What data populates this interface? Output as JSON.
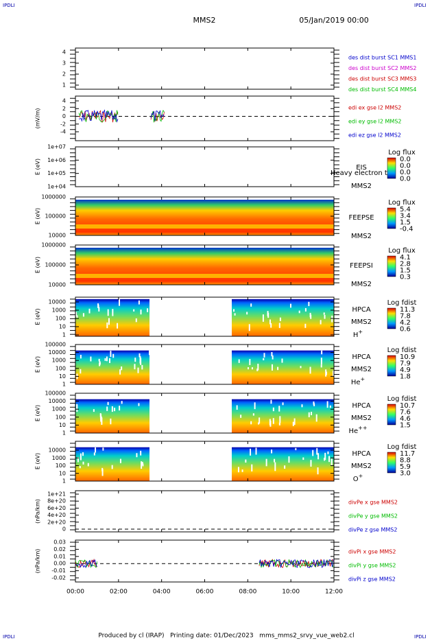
{
  "header": {
    "corner_left": "IPDLI",
    "corner_right": "IPDLI",
    "title": "MMS2",
    "date": "05/Jan/2019 00:00"
  },
  "panels": [
    {
      "kind": "lines",
      "yticks": [
        "4",
        "3",
        "2",
        "1"
      ],
      "legend": [
        {
          "text": "des dist burst SC1 MMS1",
          "color": "#0000cc"
        },
        {
          "text": "des dist burst SC2 MMS2",
          "color": "#cc00cc"
        },
        {
          "text": "des dist burst SC3 MMS3",
          "color": "#cc0000"
        },
        {
          "text": "des dist burst SC4 MMS4",
          "color": "#00bb00"
        }
      ]
    },
    {
      "kind": "lines",
      "ylabel": "(mV/m)",
      "yticks": [
        "4",
        "2",
        "0",
        "-2",
        "-4"
      ],
      "zero": true,
      "legend": [
        {
          "text": "edi ex gse l2 MMS2",
          "color": "#cc0000"
        },
        {
          "text": "edi ey gse l2 MMS2",
          "color": "#00bb00"
        },
        {
          "text": "edi ez gse l2 MMS2",
          "color": "#0000cc"
        }
      ]
    },
    {
      "kind": "spectro",
      "fill": "none",
      "ylabel": "E (eV)",
      "yticks": [
        "1e+07",
        "1e+06",
        "1e+05",
        "1e+04"
      ],
      "instrument": "EIS",
      "overlay": "Heavy electron to",
      "sc": "MMS2",
      "cbar_title": "Log flux",
      "cbar": [
        "0.0",
        "0.0",
        "0.0",
        "0.0"
      ]
    },
    {
      "kind": "spectro",
      "fill": "full",
      "ylabel": "E (eV)",
      "yticks": [
        "1000000",
        "100000",
        "10000"
      ],
      "instrument": "FEEPSE",
      "sc": "MMS2",
      "cbar_title": "Log flux",
      "cbar": [
        "5.4",
        "3.4",
        "1.5",
        "-0.4"
      ]
    },
    {
      "kind": "spectro",
      "fill": "full",
      "ylabel": "E (eV)",
      "yticks": [
        "1000000",
        "100000",
        "10000"
      ],
      "instrument": "FEEPSI",
      "sc": "MMS2",
      "cbar_title": "Log flux",
      "cbar": [
        "4.1",
        "2.8",
        "1.5",
        "0.3"
      ]
    },
    {
      "kind": "spectro",
      "fill": "gap",
      "ylabel": "E (eV)",
      "yticks": [
        "10000",
        "1000",
        "100",
        "10",
        "1"
      ],
      "instrument": "HPCA",
      "sc": "MMS2",
      "species": {
        "base": "H",
        "sup": "+"
      },
      "cbar_title": "Log fdist",
      "cbar": [
        "11.3",
        "7.8",
        "4.2",
        "0.6"
      ]
    },
    {
      "kind": "spectro",
      "fill": "gap",
      "ylabel": "E (eV)",
      "yticks": [
        "100000",
        "10000",
        "1000",
        "100",
        "10",
        "1"
      ],
      "instrument": "HPCA",
      "sc": "MMS2",
      "species": {
        "base": "He",
        "sup": "+"
      },
      "cbar_title": "Log fdist",
      "cbar": [
        "10.9",
        "7.9",
        "4.9",
        "1.8"
      ]
    },
    {
      "kind": "spectro",
      "fill": "gap",
      "ylabel": "E (eV)",
      "yticks": [
        "100000",
        "10000",
        "1000",
        "100",
        "10",
        "1"
      ],
      "instrument": "HPCA",
      "sc": "MMS2",
      "species": {
        "base": "He",
        "sup": "++"
      },
      "cbar_title": "Log fdist",
      "cbar": [
        "10.7",
        "7.6",
        "4.6",
        "1.5"
      ]
    },
    {
      "kind": "spectro",
      "fill": "gap",
      "ylabel": "E (eV)",
      "yticks": [
        "10000",
        "1000",
        "100",
        "10",
        "1"
      ],
      "instrument": "HPCA",
      "sc": "MMS2",
      "species": {
        "base": "O",
        "sup": "+"
      },
      "cbar_title": "Log fdist",
      "cbar": [
        "11.7",
        "8.8",
        "5.9",
        "3.0"
      ]
    },
    {
      "kind": "lines",
      "ylabel": "(nPa/km)",
      "yticks": [
        "1e+21",
        "8e+20",
        "6e+20",
        "4e+20",
        "2e+20",
        "0"
      ],
      "zero": true,
      "legend": [
        {
          "text": "divPe x gse MMS2",
          "color": "#cc0000"
        },
        {
          "text": "divPe y gse MMS2",
          "color": "#00bb00"
        },
        {
          "text": "divPe z gse MMS2",
          "color": "#0000cc"
        }
      ]
    },
    {
      "kind": "lines",
      "ylabel": "(nPa/km)",
      "yticks": [
        "0.03",
        "0.02",
        "0.01",
        "0.00",
        "-0.01",
        "-0.02"
      ],
      "zero": true,
      "legend": [
        {
          "text": "divPi x gse MMS2",
          "color": "#cc0000"
        },
        {
          "text": "divPi y gse MMS2",
          "color": "#00bb00"
        },
        {
          "text": "divPi z gse MMS2",
          "color": "#0000cc"
        }
      ]
    }
  ],
  "xticks": [
    "00:00",
    "02:00",
    "04:00",
    "06:00",
    "08:00",
    "10:00",
    "12:00"
  ],
  "footer": {
    "text": "Produced by cl (IRAP)   Printing date: 01/Dec/2023   mms_mms2_srvy_vue_web2.cl",
    "corner_left": "IPDLI",
    "corner_right": "IPDLI"
  }
}
